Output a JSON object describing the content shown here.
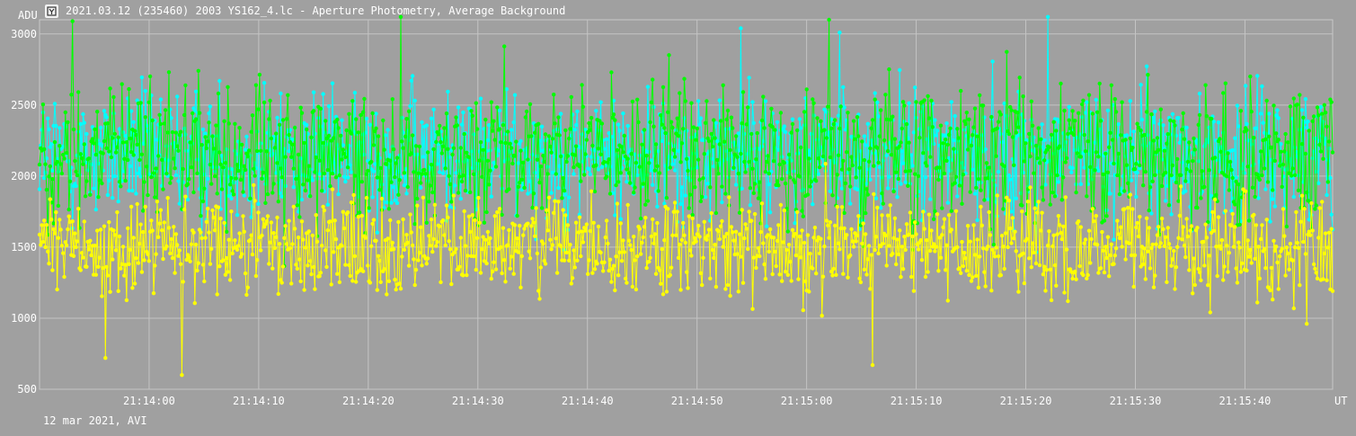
{
  "window": {
    "title": "2021.03.12 (235460) 2003 YS162_4.lc - Aperture Photometry, Average Background",
    "icon": "aperture-photometry-icon"
  },
  "footer": {
    "text": "12 mar 2021, AVI"
  },
  "chart_data": {
    "type": "line",
    "title": "2021.03.12 (235460) 2003 YS162_4.lc - Aperture Photometry, Average Background",
    "xlabel": "UT",
    "ylabel": "ADU",
    "x_range": [
      "21:13:50",
      "21:15:48"
    ],
    "ylim": [
      500,
      3100
    ],
    "x_ticks": [
      "21:14:00",
      "21:14:10",
      "21:14:20",
      "21:14:30",
      "21:14:40",
      "21:14:50",
      "21:15:00",
      "21:15:10",
      "21:15:20",
      "21:15:30",
      "21:15:40"
    ],
    "y_ticks": [
      500,
      1000,
      1500,
      2000,
      2500,
      3000
    ],
    "grid": true,
    "legend": "none",
    "markers": true,
    "series": [
      {
        "color": "#00ffff",
        "mean": 2150,
        "spread": 280,
        "approx_extremes": [
          {
            "x": "21:14:54",
            "y": 3040
          },
          {
            "x": "21:15:22",
            "y": 3120
          },
          {
            "x": "21:15:03",
            "y": 3010
          }
        ]
      },
      {
        "color": "#00ff00",
        "mean": 2150,
        "spread": 300,
        "approx_extremes": [
          {
            "x": "21:13:53",
            "y": 3090
          },
          {
            "x": "21:14:23",
            "y": 3120
          },
          {
            "x": "21:15:02",
            "y": 3100
          }
        ]
      },
      {
        "color": "#ffff00",
        "mean": 1500,
        "spread": 220,
        "approx_extremes": [
          {
            "x": "21:14:03",
            "y": 600
          },
          {
            "x": "21:13:56",
            "y": 720
          },
          {
            "x": "21:15:06",
            "y": 670
          }
        ]
      }
    ]
  }
}
